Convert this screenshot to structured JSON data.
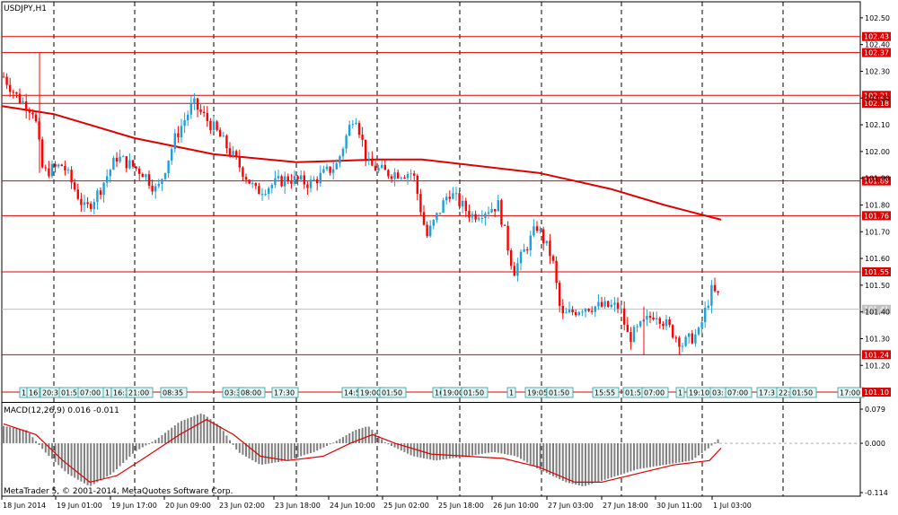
{
  "window": {
    "symbol_title": "USDJPY,H1",
    "copyright": "MetaTrader 5, © 2001-2014, MetaQuotes Software Corp."
  },
  "colors": {
    "background": "#ffffff",
    "bull_candle": "#1ea0dc",
    "bear_candle": "#ff0000",
    "level_line": "#e00000",
    "moving_average": "#e00000",
    "current_price": "#c0c0c0",
    "macd_hist": "#808080",
    "macd_signal": "#e00000",
    "event_label_bg": "#e8f4f2",
    "event_label_border": "#20a0a0"
  },
  "price_axis": {
    "ticks": [
      "102.50",
      "102.40",
      "102.30",
      "102.20",
      "102.10",
      "102.00",
      "101.90",
      "101.80",
      "101.70",
      "101.60",
      "101.50",
      "101.40",
      "101.30",
      "101.20"
    ],
    "level_labels": [
      "102.43",
      "102.37",
      "102.21",
      "102.18",
      "101.89",
      "101.76",
      "101.55",
      "101.24",
      "101.10"
    ],
    "current_price_label": "101.41"
  },
  "macd": {
    "title": "MACD(12,26,9) 0.016 -0.011",
    "axis_labels": [
      "0.079",
      "0.000",
      "-0.114"
    ]
  },
  "time_axis": {
    "labels": [
      "18 Jun 2014",
      "19 Jun 01:00",
      "19 Jun 17:00",
      "20 Jun 09:00",
      "23 Jun 02:00",
      "23 Jun 18:00",
      "24 Jun 10:00",
      "25 Jun 02:00",
      "25 Jun 18:00",
      "26 Jun 10:00",
      "27 Jun 03:00",
      "27 Jun 18:00",
      "30 Jun 11:00",
      "1 Jul 03:00"
    ]
  },
  "event_labels": [
    "1",
    "16",
    "20:3",
    "01:5",
    "07:00",
    "1",
    "16:3",
    "21:00",
    "08:35",
    "03:3",
    "08:00",
    "17:30",
    "14:5",
    "19:00",
    "01:50",
    "16",
    "19:00",
    "01:50",
    "1",
    "19:05",
    "01:50",
    "15:55",
    "01:5",
    "07:00",
    "1",
    "19:10",
    "03:",
    "07:00",
    "17:3",
    "22:",
    "01:50",
    "17:00"
  ],
  "chart_data": {
    "type": "candlestick",
    "symbol": "USDJPY",
    "timeframe": "H1",
    "horizontal_levels": [
      102.43,
      102.37,
      102.21,
      102.18,
      101.89,
      101.76,
      101.55,
      101.24,
      101.1
    ],
    "current_price": 101.41,
    "price_range": [
      101.07,
      102.56
    ],
    "macd_range": [
      -0.114,
      0.079
    ],
    "macd_last": {
      "main": 0.016,
      "signal": -0.011
    }
  }
}
